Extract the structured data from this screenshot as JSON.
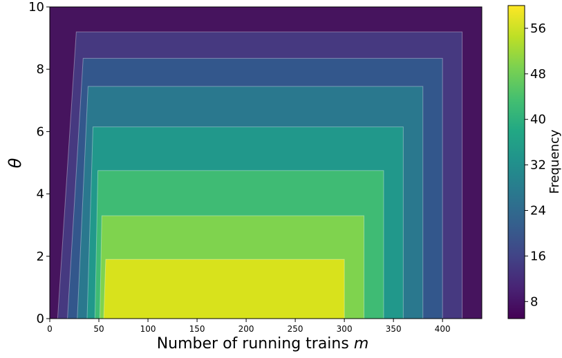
{
  "chart_data": {
    "type": "heatmap",
    "subtype": "filled-contour",
    "title": "",
    "xlabel": "Number of running trains",
    "xlabel_italic": "m",
    "ylabel": "θ",
    "colorbar_label": "Frequency",
    "xlim": [
      0,
      440
    ],
    "ylim": [
      0,
      10
    ],
    "xticks": [
      "0",
      "50",
      "100",
      "150",
      "200",
      "250",
      "300",
      "350",
      "400"
    ],
    "yticks": [
      "0",
      "2",
      "4",
      "6",
      "8",
      "10"
    ],
    "colorbar_range": [
      5,
      60
    ],
    "colorbar_ticks": [
      "8",
      "16",
      "24",
      "32",
      "40",
      "48",
      "56"
    ],
    "colormap": "viridis",
    "grid": false,
    "levels": [
      {
        "name": "outer",
        "color": "#46145e",
        "x_bottom_left": 0,
        "x_top_left": 0,
        "x_right": 440,
        "y_top": 10.0
      },
      {
        "name": "level-1",
        "color": "#463980",
        "x_bottom_left": 8,
        "x_top_left": 27,
        "x_right": 420,
        "y_top": 9.2
      },
      {
        "name": "level-2",
        "color": "#33578c",
        "x_bottom_left": 18,
        "x_top_left": 34,
        "x_right": 400,
        "y_top": 8.35
      },
      {
        "name": "level-3",
        "color": "#2a788e",
        "x_bottom_left": 28,
        "x_top_left": 39,
        "x_right": 380,
        "y_top": 7.45
      },
      {
        "name": "level-4",
        "color": "#21988b",
        "x_bottom_left": 38,
        "x_top_left": 44,
        "x_right": 360,
        "y_top": 6.15
      },
      {
        "name": "level-5",
        "color": "#3fbb74",
        "x_bottom_left": 46,
        "x_top_left": 49,
        "x_right": 340,
        "y_top": 4.75
      },
      {
        "name": "level-6",
        "color": "#7fd34e",
        "x_bottom_left": 51,
        "x_top_left": 53,
        "x_right": 320,
        "y_top": 3.3
      },
      {
        "name": "level-7",
        "color": "#d8e21c",
        "x_bottom_left": 55,
        "x_top_left": 57,
        "x_right": 300,
        "y_top": 1.9
      }
    ]
  }
}
